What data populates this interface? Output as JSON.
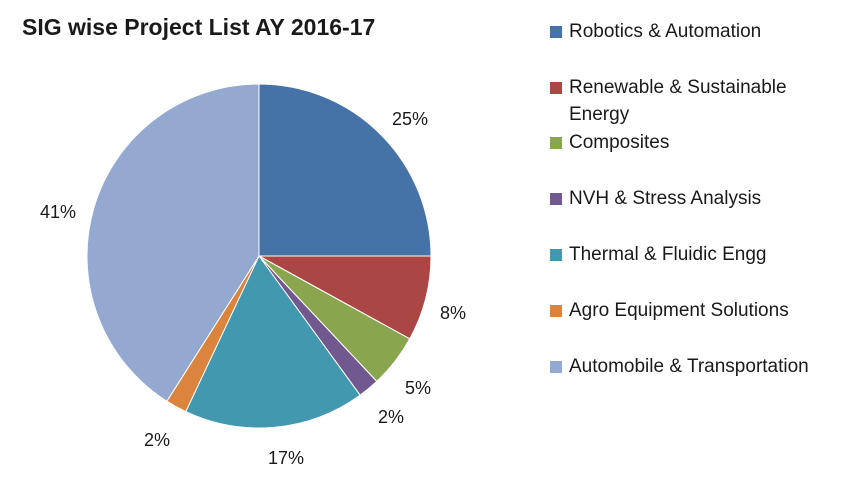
{
  "chart_data": {
    "type": "pie",
    "title": "SIG wise Project List AY 2016-17",
    "legend_position": "right",
    "slices": [
      {
        "name": "Robotics & Automation",
        "value": 25,
        "label": "25%",
        "color": "#4572a7"
      },
      {
        "name": "Renewable & Sustainable Energy",
        "value": 8,
        "label": "8%",
        "color": "#aa4643"
      },
      {
        "name": "Composites",
        "value": 5,
        "label": "5%",
        "color": "#89a54e"
      },
      {
        "name": "NVH & Stress Analysis",
        "value": 2,
        "label": "2%",
        "color": "#71588f"
      },
      {
        "name": "Thermal & Fluidic Engg",
        "value": 17,
        "label": "17%",
        "color": "#4198af"
      },
      {
        "name": "Agro Equipment Solutions",
        "value": 2,
        "label": "2%",
        "color": "#db843d"
      },
      {
        "name": "Automobile & Transportation",
        "value": 41,
        "label": "41%",
        "color": "#93a9cf"
      }
    ]
  }
}
